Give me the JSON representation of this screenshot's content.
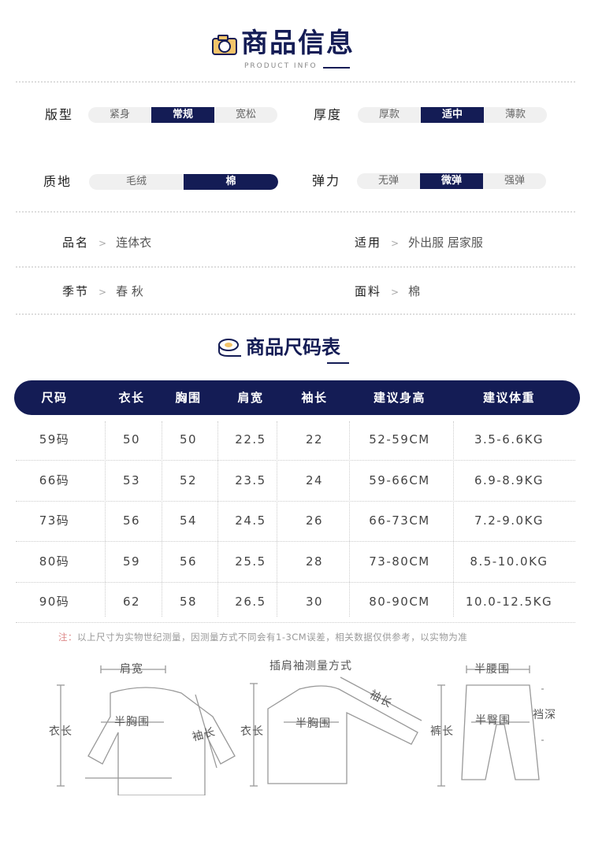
{
  "header": {
    "title": "商品信息",
    "subtitle": "PRODUCT INFO",
    "icon": "camera-icon"
  },
  "attributes": [
    {
      "label": "版型",
      "options": [
        "紧身",
        "常规",
        "宽松"
      ],
      "selected": "常规"
    },
    {
      "label": "厚度",
      "options": [
        "厚款",
        "适中",
        "薄款"
      ],
      "selected": "适中"
    },
    {
      "label": "质地",
      "options": [
        "毛绒",
        "棉"
      ],
      "selected": "棉"
    },
    {
      "label": "弹力",
      "options": [
        "无弹",
        "微弹",
        "强弹"
      ],
      "selected": "微弹"
    }
  ],
  "info": [
    {
      "key": "品名",
      "value": "连体衣"
    },
    {
      "key": "适用",
      "value": "外出服 居家服"
    },
    {
      "key": "季节",
      "value": "春 秋"
    },
    {
      "key": "面料",
      "value": "棉"
    }
  ],
  "size_title": {
    "title": "商品尺码表",
    "icon": "tape-measure-icon"
  },
  "table": {
    "headers": [
      "尺码",
      "衣长",
      "胸围",
      "肩宽",
      "袖长",
      "建议身高",
      "建议体重"
    ],
    "rows": [
      [
        "59码",
        "50",
        "50",
        "22.5",
        "22",
        "52-59CM",
        "3.5-6.6KG"
      ],
      [
        "66码",
        "53",
        "52",
        "23.5",
        "24",
        "59-66CM",
        "6.9-8.9KG"
      ],
      [
        "73码",
        "56",
        "54",
        "24.5",
        "26",
        "66-73CM",
        "7.2-9.0KG"
      ],
      [
        "80码",
        "59",
        "56",
        "25.5",
        "28",
        "73-80CM",
        "8.5-10.0KG"
      ],
      [
        "90码",
        "62",
        "58",
        "26.5",
        "30",
        "80-90CM",
        "10.0-12.5KG"
      ]
    ]
  },
  "note": {
    "prefix": "注：",
    "text": "以上尺寸为实物世纪测量，因测量方式不同会有1-3CM误差，相关数据仅供参考，以实物为准"
  },
  "diagrams": {
    "top": {
      "shoulder": "肩宽",
      "length": "衣长",
      "chest": "半胸围",
      "sleeve": "袖长"
    },
    "raglan": {
      "title": "插肩袖测量方式",
      "length": "衣长",
      "chest": "半胸围",
      "sleeve": "袖长"
    },
    "pants": {
      "waist": "半腰围",
      "length": "裤长",
      "hip": "半臀围",
      "rise": "裆深"
    }
  },
  "colors": {
    "accent": "#141c55",
    "pill_bg": "#f0f0f0",
    "note_prefix": "#dd8888"
  }
}
